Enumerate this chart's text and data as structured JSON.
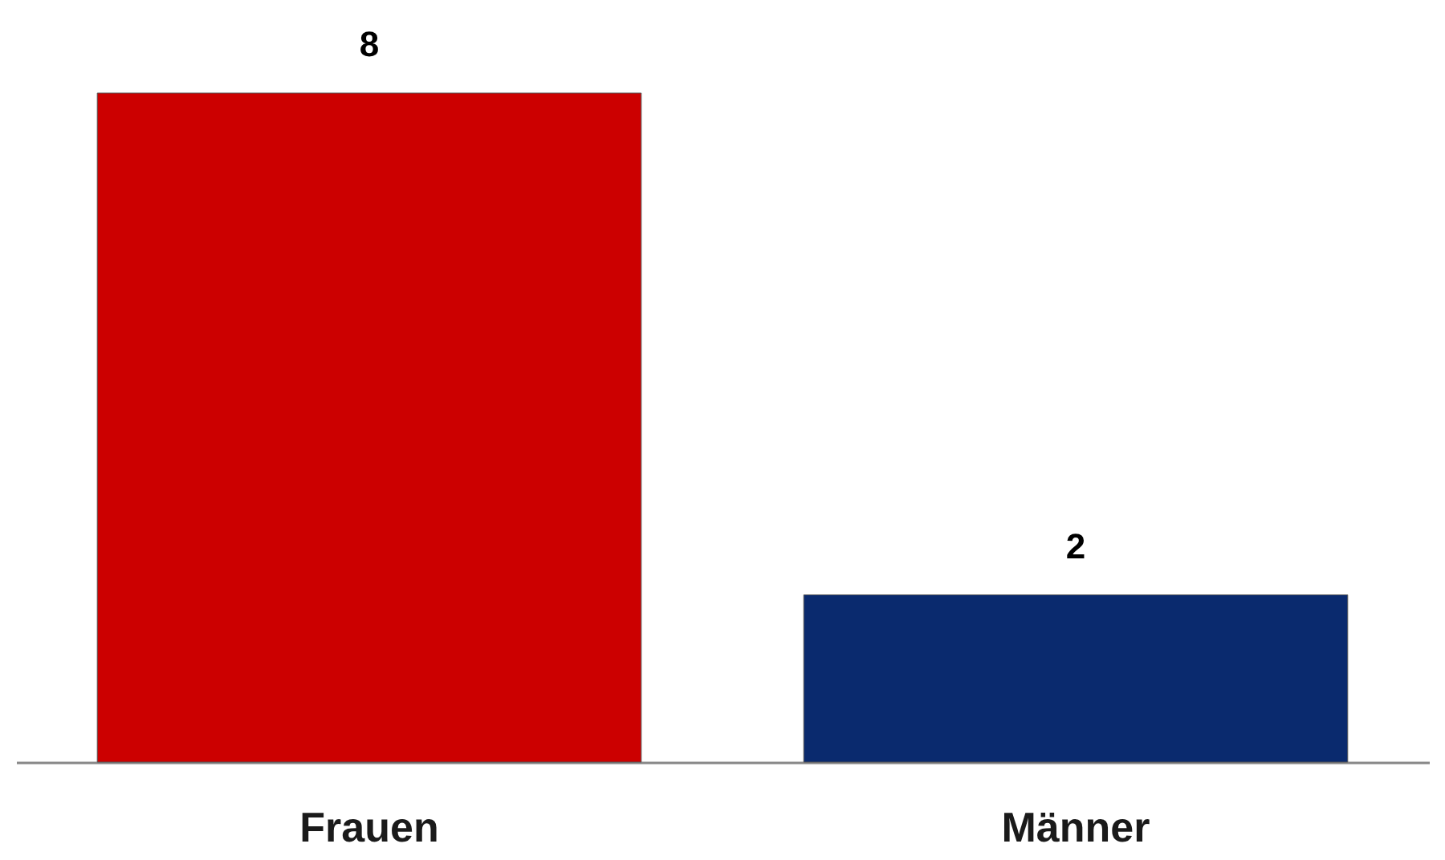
{
  "chart_data": {
    "type": "bar",
    "categories": [
      "Frauen",
      "Männer"
    ],
    "values": [
      8,
      2
    ],
    "colors": [
      "#cc0000",
      "#0a2a6e"
    ],
    "data_labels": true
  }
}
